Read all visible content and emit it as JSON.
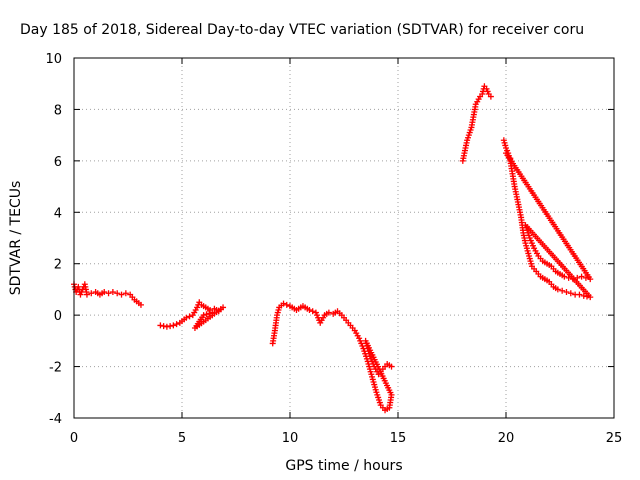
{
  "chart_data": {
    "type": "scatter",
    "title": "Day 185 of 2018, Sidereal Day-to-day VTEC variation (SDTVAR) for receiver coru",
    "xlabel": "GPS time / hours",
    "ylabel": "SDTVAR / TECUs",
    "xlim": [
      0,
      25
    ],
    "ylim": [
      -4,
      10
    ],
    "xticks": [
      0,
      5,
      10,
      15,
      20,
      25
    ],
    "yticks": [
      -4,
      -2,
      0,
      2,
      4,
      6,
      8,
      10
    ],
    "grid": true,
    "marker": "+",
    "color": "#ff0000",
    "series": [
      {
        "name": "SDTVAR",
        "segments": [
          [
            [
              0.0,
              1.2
            ],
            [
              0.1,
              0.9
            ],
            [
              0.2,
              1.1
            ],
            [
              0.3,
              0.8
            ],
            [
              0.4,
              1.0
            ],
            [
              0.5,
              1.2
            ],
            [
              0.6,
              0.8
            ],
            [
              0.8,
              0.85
            ],
            [
              1.0,
              0.9
            ],
            [
              1.2,
              0.8
            ],
            [
              1.4,
              0.9
            ],
            [
              1.6,
              0.85
            ],
            [
              1.8,
              0.9
            ],
            [
              2.0,
              0.85
            ],
            [
              2.2,
              0.8
            ],
            [
              2.4,
              0.85
            ],
            [
              2.6,
              0.8
            ],
            [
              2.8,
              0.6
            ],
            [
              3.1,
              0.4
            ]
          ],
          [
            [
              4.0,
              -0.4
            ],
            [
              4.3,
              -0.45
            ],
            [
              4.6,
              -0.4
            ],
            [
              4.9,
              -0.3
            ],
            [
              5.2,
              -0.1
            ],
            [
              5.5,
              0.0
            ],
            [
              5.7,
              0.3
            ],
            [
              5.8,
              0.5
            ],
            [
              5.9,
              0.4
            ],
            [
              6.1,
              0.3
            ],
            [
              6.3,
              0.2
            ],
            [
              6.5,
              0.25
            ],
            [
              6.7,
              0.15
            ],
            [
              6.9,
              0.3
            ],
            [
              5.6,
              -0.5
            ],
            [
              6.0,
              0.0
            ],
            [
              6.4,
              0.1
            ]
          ],
          [
            [
              9.2,
              -1.1
            ],
            [
              9.3,
              -0.6
            ],
            [
              9.4,
              0.0
            ],
            [
              9.5,
              0.3
            ],
            [
              9.7,
              0.45
            ],
            [
              10.0,
              0.35
            ],
            [
              10.3,
              0.2
            ],
            [
              10.6,
              0.35
            ],
            [
              10.9,
              0.2
            ],
            [
              11.2,
              0.1
            ],
            [
              11.4,
              -0.3
            ],
            [
              11.6,
              0.0
            ],
            [
              11.8,
              0.1
            ],
            [
              12.0,
              0.05
            ],
            [
              12.2,
              0.15
            ],
            [
              12.4,
              0.0
            ],
            [
              12.6,
              -0.2
            ],
            [
              12.8,
              -0.4
            ],
            [
              13.0,
              -0.6
            ],
            [
              13.2,
              -0.9
            ],
            [
              13.4,
              -1.3
            ],
            [
              13.6,
              -1.8
            ],
            [
              13.8,
              -2.4
            ],
            [
              14.0,
              -3.0
            ],
            [
              14.2,
              -3.5
            ],
            [
              14.4,
              -3.7
            ],
            [
              14.6,
              -3.6
            ],
            [
              14.7,
              -3.1
            ],
            [
              13.5,
              -1.0
            ],
            [
              13.7,
              -1.6
            ],
            [
              13.9,
              -2.0
            ],
            [
              14.1,
              -2.3
            ],
            [
              14.3,
              -2.1
            ],
            [
              14.5,
              -1.9
            ],
            [
              14.7,
              -2.0
            ]
          ],
          [
            [
              18.0,
              6.0
            ],
            [
              18.2,
              6.8
            ],
            [
              18.4,
              7.3
            ],
            [
              18.6,
              8.2
            ],
            [
              18.8,
              8.5
            ],
            [
              18.9,
              8.6
            ],
            [
              19.0,
              8.9
            ],
            [
              19.1,
              8.8
            ],
            [
              19.2,
              8.6
            ],
            [
              19.3,
              8.5
            ]
          ],
          [
            [
              19.9,
              6.8
            ],
            [
              20.0,
              6.5
            ],
            [
              20.1,
              6.3
            ],
            [
              20.2,
              6.0
            ],
            [
              20.3,
              5.5
            ],
            [
              20.4,
              5.0
            ],
            [
              20.5,
              4.6
            ],
            [
              20.6,
              4.2
            ],
            [
              20.7,
              3.8
            ],
            [
              20.8,
              3.2
            ],
            [
              20.9,
              2.8
            ],
            [
              21.0,
              2.5
            ],
            [
              21.1,
              2.2
            ],
            [
              21.2,
              1.9
            ],
            [
              21.4,
              1.7
            ],
            [
              21.6,
              1.5
            ],
            [
              21.8,
              1.4
            ],
            [
              22.0,
              1.3
            ],
            [
              22.2,
              1.1
            ],
            [
              22.4,
              1.0
            ],
            [
              22.6,
              0.95
            ],
            [
              22.8,
              0.9
            ],
            [
              23.0,
              0.85
            ],
            [
              23.2,
              0.8
            ],
            [
              23.4,
              0.8
            ],
            [
              23.6,
              0.75
            ],
            [
              23.9,
              0.7
            ],
            [
              20.9,
              3.5
            ],
            [
              21.1,
              3.0
            ],
            [
              21.3,
              2.6
            ],
            [
              21.5,
              2.3
            ],
            [
              21.7,
              2.1
            ],
            [
              21.9,
              2.0
            ],
            [
              22.1,
              1.9
            ],
            [
              22.3,
              1.7
            ],
            [
              22.5,
              1.6
            ],
            [
              22.7,
              1.5
            ],
            [
              22.9,
              1.45
            ],
            [
              23.1,
              1.4
            ],
            [
              23.3,
              1.45
            ],
            [
              23.5,
              1.5
            ],
            [
              23.7,
              1.45
            ],
            [
              23.9,
              1.4
            ],
            [
              20.0,
              6.3
            ],
            [
              20.2,
              6.1
            ]
          ]
        ]
      }
    ]
  }
}
